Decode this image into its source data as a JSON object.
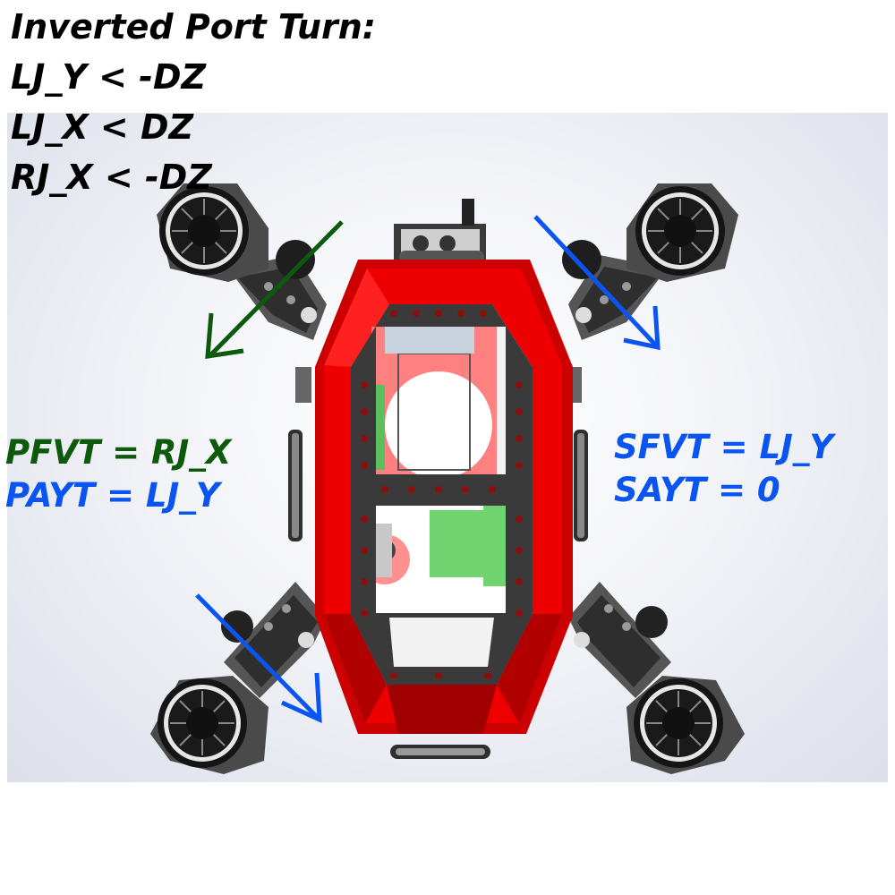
{
  "title": {
    "heading": "Inverted Port Turn:",
    "conditions": [
      "LJ_Y < -DZ",
      "LJ_X < DZ",
      "RJ_X < -DZ"
    ]
  },
  "port_labels": {
    "pfvt": "PFVT = RJ_X",
    "payt": "PAYT = LJ_Y"
  },
  "starboard_labels": {
    "sfvt": "SFVT = LJ_Y",
    "sayt": "SAYT = 0"
  },
  "colors": {
    "green": "#0d5a0d",
    "blue": "#0a55f0",
    "hull_red": "#ee0000",
    "frame_gray": "#3c3c3c"
  }
}
